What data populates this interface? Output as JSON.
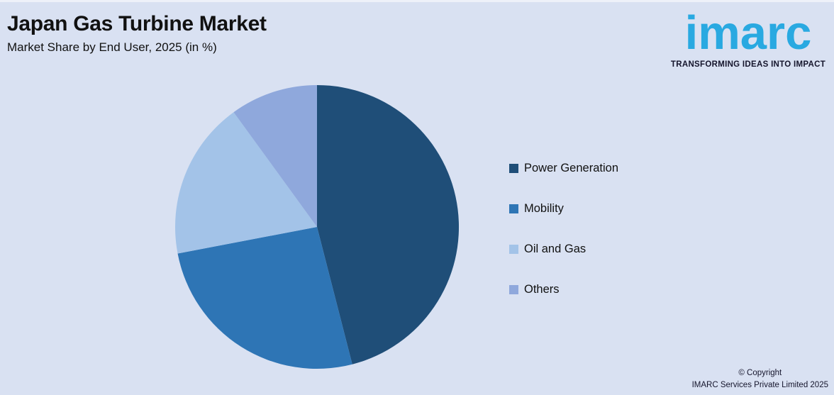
{
  "header": {
    "title": "Japan Gas Turbine Market",
    "subtitle": "Market Share by End User, 2025 (in %)"
  },
  "logo": {
    "wordmark": "imarc",
    "tagline": "TRANSFORMING IDEAS INTO IMPACT"
  },
  "chart_data": {
    "type": "pie",
    "title": "Japan Gas Turbine Market",
    "subtitle": "Market Share by End User, 2025 (in %)",
    "categories": [
      "Power Generation",
      "Mobility",
      "Oil and Gas",
      "Others"
    ],
    "values": [
      46,
      26,
      18,
      10
    ],
    "unit": "%",
    "colors": [
      "#1F4E78",
      "#2E75B5",
      "#A3C3E8",
      "#8FA8DC"
    ],
    "start_angle_deg": 0,
    "direction": "clockwise",
    "legend_position": "right",
    "data_labels": false
  },
  "colors": {
    "background": "#D9E1F2",
    "logo_blue": "#29A9E1",
    "text": "#111111"
  },
  "footer": {
    "line1": "© Copyright",
    "line2": "IMARC Services Private Limited 2025"
  }
}
